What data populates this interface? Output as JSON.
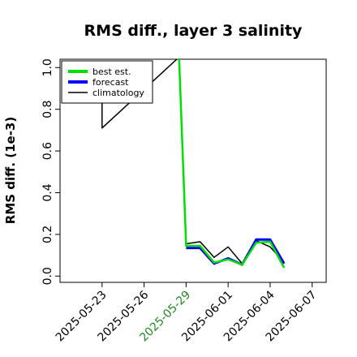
{
  "chart_data": {
    "type": "line",
    "title": "RMS diff., layer 3 salinity",
    "ylabel": "RMS diff. (1e-3)",
    "xlabel": "",
    "ylim": [
      -0.03,
      1.04
    ],
    "xlim": [
      "2025-05-20",
      "2025-06-08"
    ],
    "y_ticks": [
      "0.0",
      "0.2",
      "0.4",
      "0.6",
      "0.8",
      "1.0"
    ],
    "x_ticks": [
      {
        "label": "2025-05-23",
        "date": "2025-05-23",
        "color": "#000000"
      },
      {
        "label": "2025-05-26",
        "date": "2025-05-26",
        "color": "#000000"
      },
      {
        "label": "2025-05-29",
        "date": "2025-05-29",
        "color": "#228B22"
      },
      {
        "label": "2025-06-01",
        "date": "2025-06-01",
        "color": "#000000"
      },
      {
        "label": "2025-06-04",
        "date": "2025-06-04",
        "color": "#000000"
      },
      {
        "label": "2025-06-07",
        "date": "2025-06-07",
        "color": "#000000"
      }
    ],
    "grid": false,
    "legend_position": "top-left",
    "series": [
      {
        "name": "climatology",
        "color": "#000000",
        "x": [
          "2025-05-23",
          "2025-05-23",
          "2025-05-28 12:00",
          "2025-05-29",
          "2025-05-30",
          "2025-05-31",
          "2025-06-01",
          "2025-06-02",
          "2025-06-03",
          "2025-06-04",
          "2025-06-05"
        ],
        "values": [
          0.84,
          0.71,
          1.05,
          0.155,
          0.165,
          0.09,
          0.14,
          0.06,
          0.17,
          0.14,
          0.065
        ]
      },
      {
        "name": "forecast",
        "color": "#0000FF",
        "x": [
          "2025-05-29",
          "2025-05-30",
          "2025-05-31",
          "2025-06-01",
          "2025-06-02",
          "2025-06-03",
          "2025-06-04",
          "2025-06-05"
        ],
        "values": [
          0.135,
          0.135,
          0.06,
          0.085,
          0.055,
          0.175,
          0.175,
          0.06
        ]
      },
      {
        "name": "best est.",
        "color": "#00E000",
        "x": [
          "2025-05-28 12:00",
          "2025-05-29",
          "2025-05-30",
          "2025-05-31",
          "2025-06-01",
          "2025-06-02",
          "2025-06-03",
          "2025-06-04",
          "2025-06-05"
        ],
        "values": [
          1.05,
          0.145,
          0.145,
          0.065,
          0.08,
          0.055,
          0.16,
          0.165,
          0.04
        ]
      }
    ]
  }
}
